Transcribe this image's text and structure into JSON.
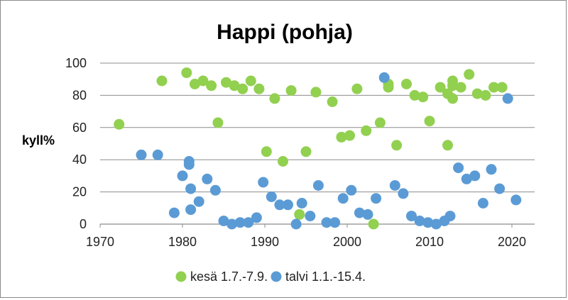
{
  "chart_data": {
    "type": "scatter",
    "title": "Happi (pohja)",
    "xlabel": "",
    "ylabel": "kyll%",
    "xlim": [
      1970,
      2025
    ],
    "ylim": [
      0,
      100
    ],
    "x_ticks": [
      "1970",
      "1980",
      "1990",
      "2000",
      "2010",
      "2020"
    ],
    "y_ticks": [
      "0",
      "20",
      "40",
      "60",
      "80",
      "100"
    ],
    "grid": "horizontal",
    "legend_position": "bottom",
    "series": [
      {
        "name": "kesä 1.7.-7.9.",
        "color": "#92d050",
        "points": [
          [
            1972.3,
            62
          ],
          [
            1977.5,
            89
          ],
          [
            1980.5,
            94
          ],
          [
            1981.5,
            87
          ],
          [
            1982.5,
            89
          ],
          [
            1983.5,
            86
          ],
          [
            1984.3,
            63
          ],
          [
            1985.3,
            88
          ],
          [
            1986.3,
            86
          ],
          [
            1987.3,
            84
          ],
          [
            1988.3,
            89
          ],
          [
            1989.3,
            84
          ],
          [
            1990.2,
            45
          ],
          [
            1991.2,
            78
          ],
          [
            1992.2,
            39
          ],
          [
            1993.2,
            83
          ],
          [
            1994.2,
            6
          ],
          [
            1995.0,
            45
          ],
          [
            1996.2,
            82
          ],
          [
            1998.2,
            76
          ],
          [
            1999.3,
            54
          ],
          [
            2000.3,
            55
          ],
          [
            2001.2,
            84
          ],
          [
            2002.3,
            58
          ],
          [
            2003.2,
            0
          ],
          [
            2004.0,
            63
          ],
          [
            2005.0,
            87
          ],
          [
            2005.0,
            85
          ],
          [
            2006.0,
            49
          ],
          [
            2007.2,
            87
          ],
          [
            2008.2,
            80
          ],
          [
            2009.2,
            79
          ],
          [
            2010.0,
            64
          ],
          [
            2011.3,
            85
          ],
          [
            2012.2,
            49
          ],
          [
            2012.2,
            81
          ],
          [
            2012.8,
            78
          ],
          [
            2012.8,
            86
          ],
          [
            2012.8,
            89
          ],
          [
            2013.8,
            85
          ],
          [
            2014.8,
            93
          ],
          [
            2015.8,
            81
          ],
          [
            2016.8,
            80
          ],
          [
            2017.8,
            85
          ],
          [
            2018.8,
            85
          ]
        ]
      },
      {
        "name": "talvi 1.1.-15.4.",
        "color": "#5b9bd5",
        "points": [
          [
            1975.0,
            43
          ],
          [
            1977.0,
            43
          ],
          [
            1979.0,
            7
          ],
          [
            1980.0,
            30
          ],
          [
            1980.8,
            39
          ],
          [
            1980.8,
            37
          ],
          [
            1981.0,
            22
          ],
          [
            1981.0,
            9
          ],
          [
            1982.0,
            14
          ],
          [
            1983.0,
            28
          ],
          [
            1984.0,
            21
          ],
          [
            1985.0,
            2
          ],
          [
            1986.0,
            0
          ],
          [
            1987.0,
            1
          ],
          [
            1988.0,
            1
          ],
          [
            1989.0,
            4
          ],
          [
            1989.8,
            26
          ],
          [
            1990.8,
            17
          ],
          [
            1991.8,
            12
          ],
          [
            1992.8,
            12
          ],
          [
            1993.8,
            0
          ],
          [
            1994.5,
            13
          ],
          [
            1995.5,
            5
          ],
          [
            1996.5,
            24
          ],
          [
            1997.5,
            1
          ],
          [
            1998.5,
            1
          ],
          [
            1999.5,
            16
          ],
          [
            2000.5,
            21
          ],
          [
            2001.5,
            7
          ],
          [
            2002.5,
            6
          ],
          [
            2003.5,
            16
          ],
          [
            2004.5,
            91
          ],
          [
            2005.8,
            24
          ],
          [
            2006.8,
            19
          ],
          [
            2007.8,
            5
          ],
          [
            2008.8,
            2
          ],
          [
            2009.8,
            1
          ],
          [
            2010.8,
            0
          ],
          [
            2011.8,
            2
          ],
          [
            2012.5,
            5
          ],
          [
            2013.5,
            35
          ],
          [
            2014.5,
            28
          ],
          [
            2015.5,
            30
          ],
          [
            2016.5,
            13
          ],
          [
            2017.5,
            34
          ],
          [
            2018.5,
            22
          ],
          [
            2019.5,
            78
          ],
          [
            2020.5,
            15
          ]
        ]
      }
    ]
  }
}
